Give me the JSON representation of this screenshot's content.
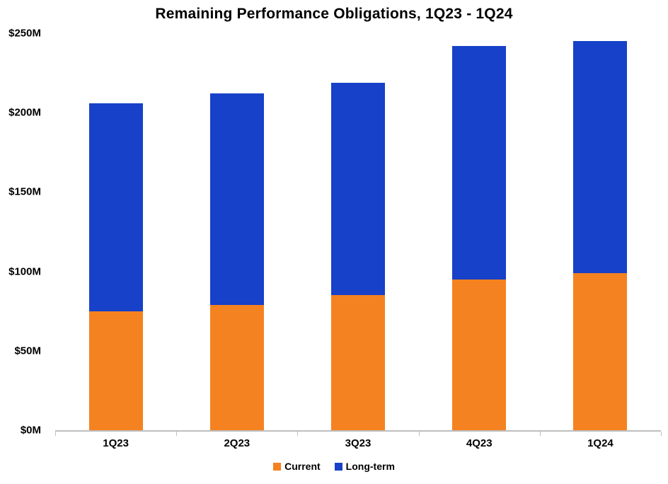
{
  "chart_data": {
    "type": "bar",
    "stacked": true,
    "title": "Remaining Performance Obligations, 1Q23 - 1Q24",
    "categories": [
      "1Q23",
      "2Q23",
      "3Q23",
      "4Q23",
      "1Q24"
    ],
    "series": [
      {
        "name": "Current",
        "color": "#F58220",
        "values": [
          75,
          79,
          85,
          95,
          99
        ]
      },
      {
        "name": "Long-term",
        "color": "#1641C8",
        "values": [
          131,
          133,
          134,
          147,
          146
        ]
      }
    ],
    "totals": [
      206,
      212,
      219,
      242,
      245
    ],
    "xlabel": "",
    "ylabel": "",
    "ylim": [
      0,
      250
    ],
    "yticks": [
      {
        "value": 0,
        "label": "$0M"
      },
      {
        "value": 50,
        "label": "$50M"
      },
      {
        "value": 100,
        "label": "$100M"
      },
      {
        "value": 150,
        "label": "$150M"
      },
      {
        "value": 200,
        "label": "$200M"
      },
      {
        "value": 250,
        "label": "$250M"
      }
    ],
    "grid": false,
    "legend_position": "bottom",
    "axis_color": "#BEBEBE",
    "background_color": "#FFFFFF"
  }
}
